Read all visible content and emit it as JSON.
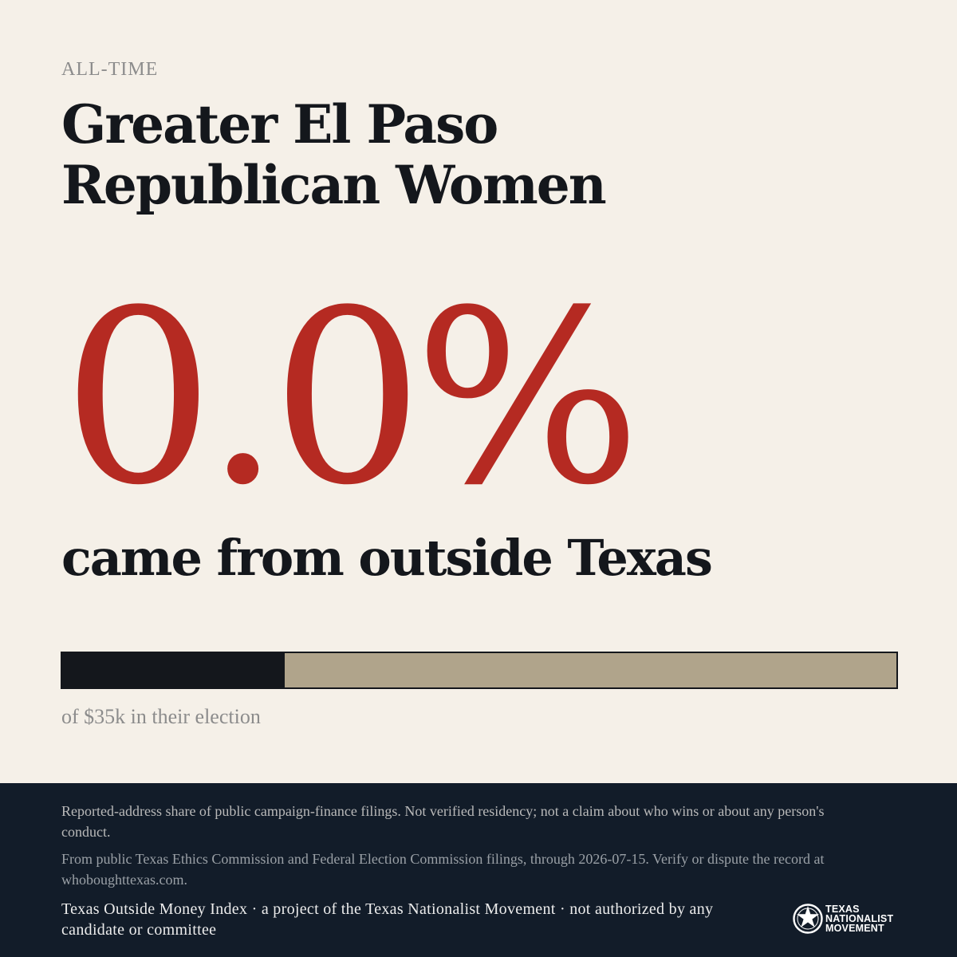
{
  "kicker": "ALL-TIME",
  "org_name": "Greater El Paso Republican Women",
  "stat": {
    "value_text": "0.0%",
    "caption": "came from outside Texas"
  },
  "bar": {
    "fill_fraction": 0.267,
    "fill_color": "#14171c",
    "track_color": "#b0a48b",
    "caption": "of $35k in their election"
  },
  "footer": {
    "disclaimer": "Reported-address share of public campaign-finance filings. Not verified residency; not a claim about who wins or about any person's conduct.",
    "source": "From public Texas Ethics Commission and Federal Election Commission filings, through 2026-07-15. Verify or dispute the record at whoboughttexas.com.",
    "credit": "Texas Outside Money Index · a project of the Texas Nationalist Movement · not authorized by any candidate or committee",
    "logo": {
      "icon": "star-seal-icon",
      "line1": "TEXAS",
      "line2": "NATIONALIST",
      "line3": "MOVEMENT"
    }
  },
  "colors": {
    "background": "#f5f0e8",
    "accent_red": "#b52a22",
    "footer_navy": "#121c29"
  }
}
